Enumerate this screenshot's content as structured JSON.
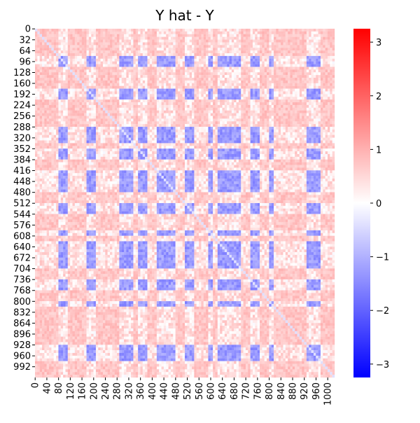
{
  "chart_data": {
    "type": "heatmap",
    "title": "Y hat - Y",
    "xlabel": "",
    "ylabel": "",
    "matrix_size": 1024,
    "x_tick_labels": [
      "0",
      "40",
      "80",
      "120",
      "160",
      "200",
      "240",
      "280",
      "320",
      "360",
      "400",
      "440",
      "480",
      "520",
      "560",
      "600",
      "640",
      "680",
      "720",
      "760",
      "800",
      "840",
      "880",
      "920",
      "960",
      "1000"
    ],
    "y_tick_labels": [
      "0",
      "32",
      "64",
      "96",
      "128",
      "160",
      "192",
      "224",
      "256",
      "288",
      "320",
      "352",
      "384",
      "416",
      "448",
      "480",
      "512",
      "544",
      "576",
      "608",
      "640",
      "672",
      "704",
      "736",
      "768",
      "800",
      "832",
      "864",
      "896",
      "928",
      "960",
      "992"
    ],
    "colorbar": {
      "colormap": "bwr",
      "vmin": -3.25,
      "vmax": 3.25,
      "tick_values": [
        3,
        2,
        1,
        0,
        -1,
        -2,
        -3
      ],
      "tick_labels": [
        "3",
        "2",
        "1",
        "0",
        "−1",
        "−2",
        "−3"
      ]
    },
    "background_value": 0.75,
    "low_value_bands": [
      {
        "start": 80,
        "end": 112
      },
      {
        "start": 176,
        "end": 208
      },
      {
        "start": 288,
        "end": 336
      },
      {
        "start": 352,
        "end": 384
      },
      {
        "start": 416,
        "end": 480
      },
      {
        "start": 512,
        "end": 544
      },
      {
        "start": 592,
        "end": 608
      },
      {
        "start": 624,
        "end": 704
      },
      {
        "start": 736,
        "end": 768
      },
      {
        "start": 800,
        "end": 816
      },
      {
        "start": 928,
        "end": 976
      }
    ],
    "band_value": -1.3,
    "notes_visible": "Symmetric residual matrix: mostly light positive (~0.7), strongly negative where low-value row and column bands cross"
  },
  "colors": {
    "background": "#ffffff",
    "text": "#000000"
  }
}
